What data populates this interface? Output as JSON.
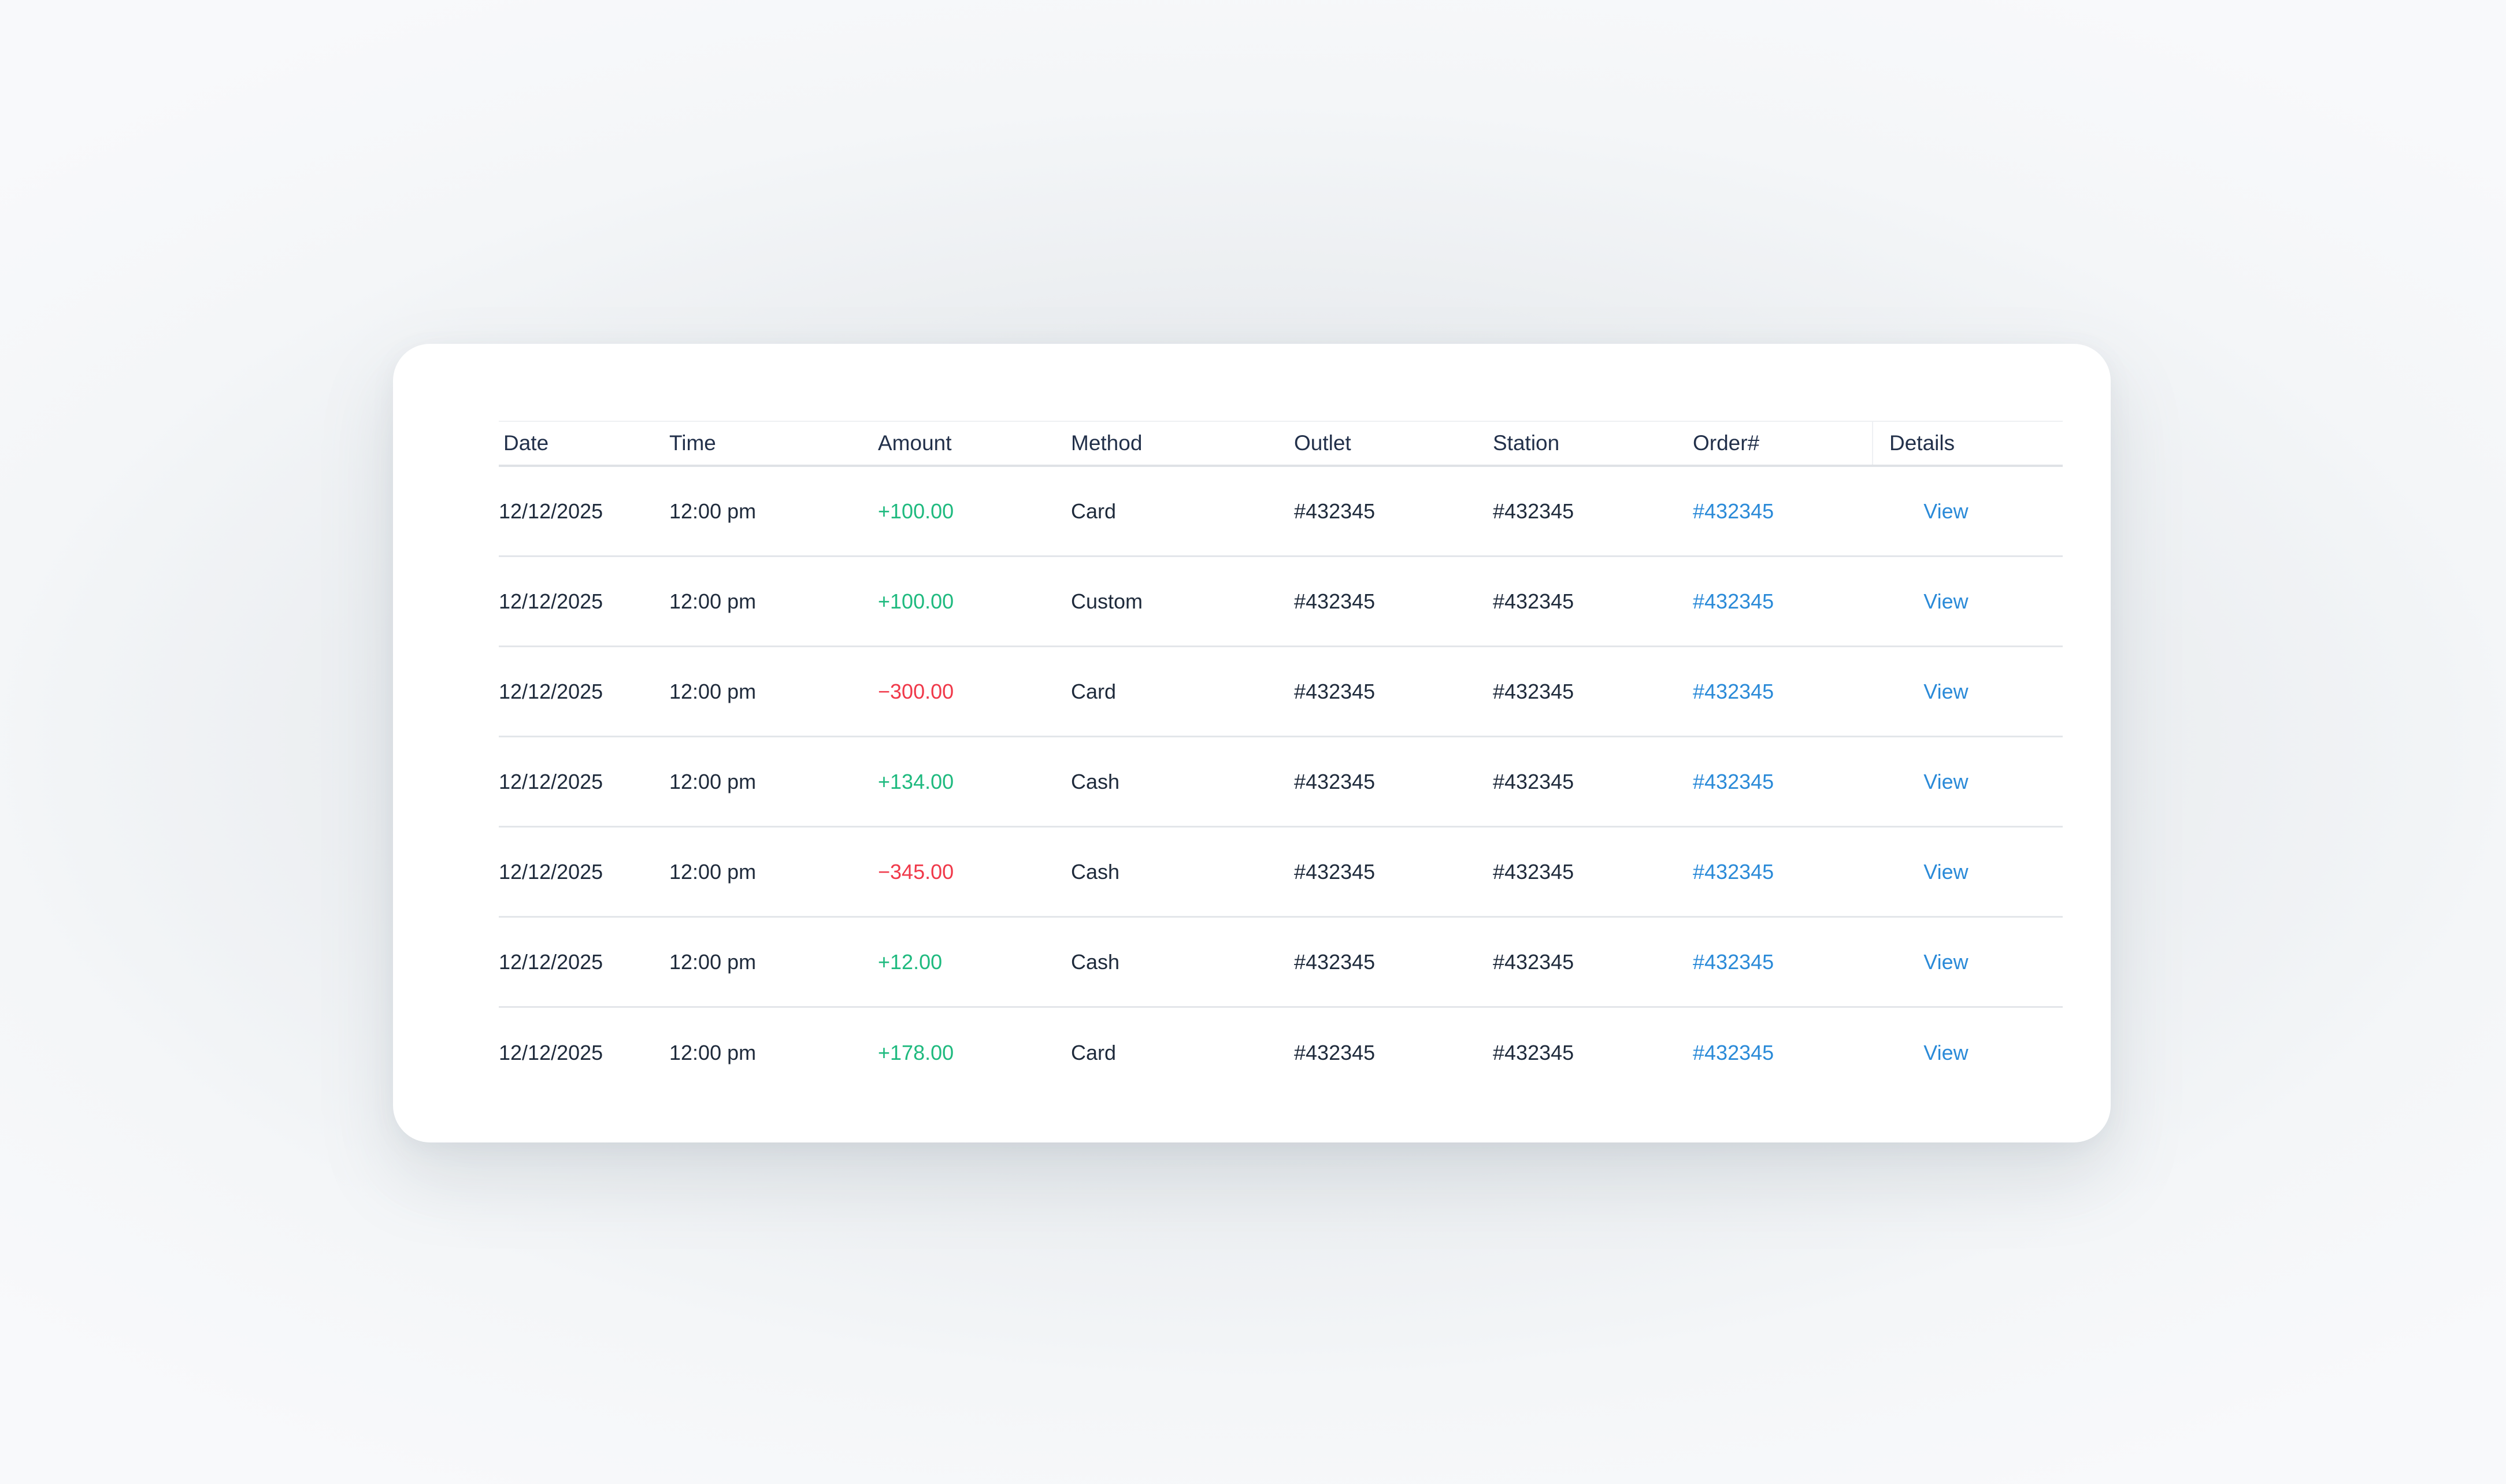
{
  "colors": {
    "positive": "#1fba7f",
    "negative": "#f0394a",
    "link": "#2a8ad8",
    "text": "#1e2a3b"
  },
  "table": {
    "headers": {
      "date": "Date",
      "time": "Time",
      "amount": "Amount",
      "method": "Method",
      "outlet": "Outlet",
      "station": "Station",
      "order": "Order#",
      "details": "Details"
    },
    "rows": [
      {
        "date": "12/12/2025",
        "time": "12:00 pm",
        "amount": "+100.00",
        "sign": "positive",
        "method": "Card",
        "outlet": "#432345",
        "station": "#432345",
        "order": "#432345",
        "details": "View"
      },
      {
        "date": "12/12/2025",
        "time": "12:00 pm",
        "amount": "+100.00",
        "sign": "positive",
        "method": "Custom",
        "outlet": "#432345",
        "station": "#432345",
        "order": "#432345",
        "details": "View"
      },
      {
        "date": "12/12/2025",
        "time": "12:00 pm",
        "amount": "−300.00",
        "sign": "negative",
        "method": "Card",
        "outlet": "#432345",
        "station": "#432345",
        "order": "#432345",
        "details": "View"
      },
      {
        "date": "12/12/2025",
        "time": "12:00 pm",
        "amount": "+134.00",
        "sign": "positive",
        "method": "Cash",
        "outlet": "#432345",
        "station": "#432345",
        "order": "#432345",
        "details": "View"
      },
      {
        "date": "12/12/2025",
        "time": "12:00 pm",
        "amount": "−345.00",
        "sign": "negative",
        "method": "Cash",
        "outlet": "#432345",
        "station": "#432345",
        "order": "#432345",
        "details": "View"
      },
      {
        "date": "12/12/2025",
        "time": "12:00 pm",
        "amount": "+12.00",
        "sign": "positive",
        "method": "Cash",
        "outlet": "#432345",
        "station": "#432345",
        "order": "#432345",
        "details": "View"
      },
      {
        "date": "12/12/2025",
        "time": "12:00 pm",
        "amount": "+178.00",
        "sign": "positive",
        "method": "Card",
        "outlet": "#432345",
        "station": "#432345",
        "order": "#432345",
        "details": "View"
      }
    ]
  }
}
